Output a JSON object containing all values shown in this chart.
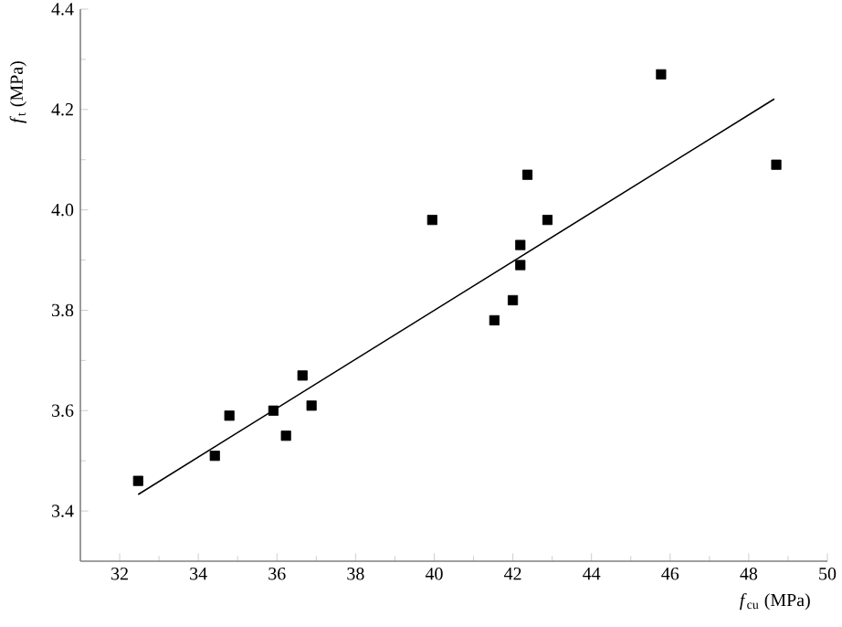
{
  "chart_data": {
    "type": "scatter",
    "xlabel": "*f*$_{cu}$ (MPa)",
    "ylabel": "*f*$_{t}$ (MPa)",
    "xlim": [
      31,
      50
    ],
    "xticks": [
      32,
      34,
      36,
      38,
      40,
      42,
      44,
      46,
      48,
      50
    ],
    "ylim": [
      3.3,
      4.4
    ],
    "yticks": [
      3.4,
      3.6,
      3.8,
      {
        "value": 4.0,
        "label": "4.0"
      },
      4.2,
      4.4
    ],
    "grid": false,
    "series": [
      {
        "color": "#000000",
        "marker": "square",
        "x": [
          32.47,
          34.42,
          34.79,
          35.91,
          36.23,
          36.65,
          36.88,
          39.95,
          41.53,
          42.0,
          42.19,
          42.19,
          42.37,
          42.88,
          45.77,
          48.7
        ],
        "values": [
          3.46,
          3.51,
          3.59,
          3.6,
          3.55,
          3.67,
          3.61,
          3.98,
          3.78,
          3.82,
          3.89,
          3.93,
          4.07,
          3.98,
          4.27,
          4.09
        ]
      },
      {
        "type": "line",
        "color": "#000000",
        "marker": "none",
        "line_style": "solid",
        "x": [
          32.47,
          48.65
        ],
        "values": [
          3.433,
          4.221
        ]
      }
    ]
  }
}
